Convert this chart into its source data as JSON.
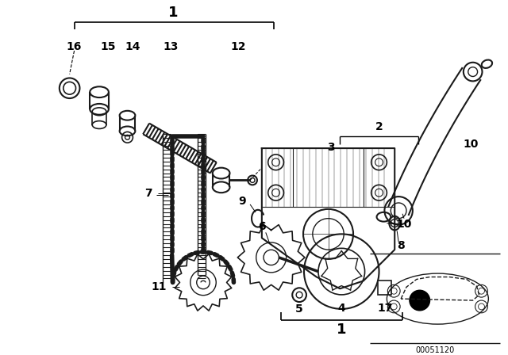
{
  "bg_color": "#ffffff",
  "dc": "#1a1a1a",
  "lc": "#000000",
  "part_number": "00051120",
  "fig_width": 6.4,
  "fig_height": 4.48,
  "dpi": 100
}
